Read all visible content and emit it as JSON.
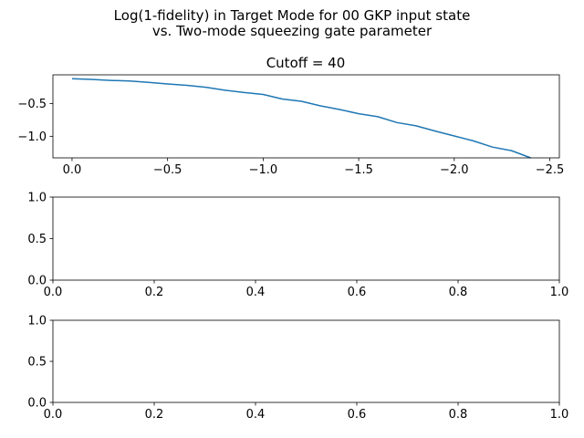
{
  "figure": {
    "suptitle_line1": "Log(1-fidelity) in Target Mode for 00 GKP input state",
    "suptitle_line2": "vs. Two-mode squeezing gate parameter"
  },
  "chart_data": [
    {
      "type": "line",
      "title": "Cutoff = 40",
      "xlabel": "",
      "ylabel": "",
      "xlim": [
        0.1,
        -2.55
      ],
      "ylim": [
        -1.33,
        -0.06
      ],
      "xticks": [
        0.0,
        -0.5,
        -1.0,
        -1.5,
        -2.0,
        -2.5
      ],
      "xtick_labels": [
        "0.0",
        "−0.5",
        "−1.0",
        "−1.5",
        "−2.0",
        "−2.5"
      ],
      "yticks": [
        -0.5,
        -1.0
      ],
      "ytick_labels": [
        "−0.5",
        "−1.0"
      ],
      "grid": false,
      "color": "#1f77b4",
      "series": [
        {
          "x": [
            0.0,
            -0.1,
            -0.2,
            -0.3,
            -0.4,
            -0.5,
            -0.6,
            -0.7,
            -0.8,
            -0.9,
            -1.0,
            -1.1,
            -1.2,
            -1.3,
            -1.4,
            -1.5,
            -1.6,
            -1.7,
            -1.8,
            -1.9,
            -2.0,
            -2.1,
            -2.2,
            -2.3,
            -2.4
          ],
          "y": [
            -0.12,
            -0.13,
            -0.145,
            -0.155,
            -0.175,
            -0.2,
            -0.22,
            -0.25,
            -0.295,
            -0.33,
            -0.36,
            -0.43,
            -0.465,
            -0.535,
            -0.59,
            -0.655,
            -0.7,
            -0.79,
            -0.84,
            -0.92,
            -0.995,
            -1.07,
            -1.165,
            -1.22,
            -1.33
          ]
        }
      ]
    },
    {
      "type": "line",
      "title": "",
      "xlim": [
        0.0,
        1.0
      ],
      "ylim": [
        0.0,
        1.0
      ],
      "xtick_labels": [
        "0.0",
        "0.2",
        "0.4",
        "0.6",
        "0.8",
        "1.0"
      ],
      "ytick_labels": [
        "0.0",
        "0.5",
        "1.0"
      ],
      "series": []
    },
    {
      "type": "line",
      "title": "",
      "xlim": [
        0.0,
        1.0
      ],
      "ylim": [
        0.0,
        1.0
      ],
      "xtick_labels": [
        "0.0",
        "0.2",
        "0.4",
        "0.6",
        "0.8",
        "1.0"
      ],
      "ytick_labels": [
        "0.0",
        "0.5",
        "1.0"
      ],
      "series": []
    }
  ]
}
